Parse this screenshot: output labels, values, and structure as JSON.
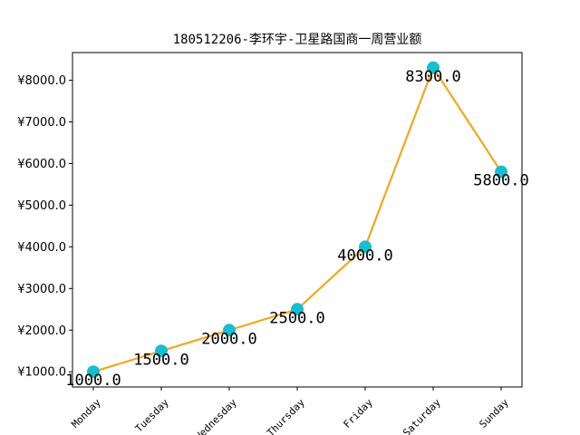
{
  "chart_data": {
    "type": "line",
    "title": "180512206-李环宇-卫星路国商一周营业额",
    "xlabel": "",
    "ylabel": "",
    "categories": [
      "Monday",
      "Tuesday",
      "Wednesday",
      "Thursday",
      "Friday",
      "Saturday",
      "Sunday"
    ],
    "series": [
      {
        "name": "营业额",
        "values": [
          1000.0,
          1500.0,
          2000.0,
          2500.0,
          4000.0,
          8300.0,
          5800.0
        ]
      }
    ],
    "data_labels": [
      "1000.0",
      "1500.0",
      "2000.0",
      "2500.0",
      "4000.0",
      "8300.0",
      "5800.0"
    ],
    "yticks": [
      1000,
      2000,
      3000,
      4000,
      5000,
      6000,
      7000,
      8000
    ],
    "ytick_labels": [
      "¥1000.0",
      "¥2000.0",
      "¥3000.0",
      "¥4000.0",
      "¥5000.0",
      "¥6000.0",
      "¥7000.0",
      "¥8000.0"
    ],
    "ylim": [
      635,
      8665
    ],
    "grid": false,
    "line_color": "#f0a81c",
    "marker_color": "#17becf"
  }
}
